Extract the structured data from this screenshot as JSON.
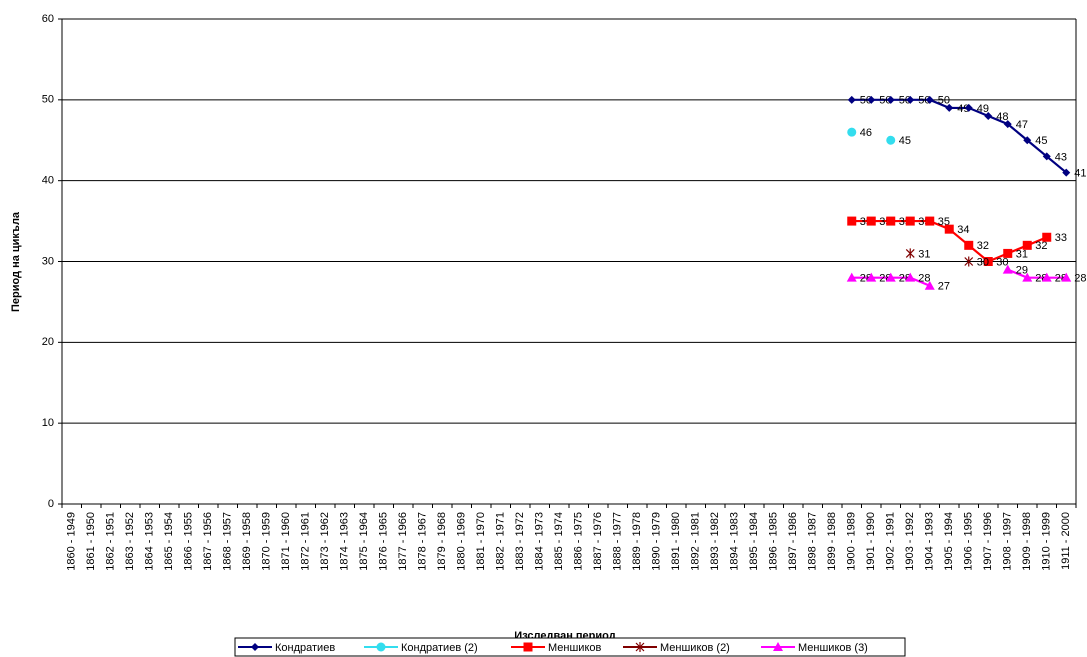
{
  "chart_data": {
    "type": "line",
    "xlabel": "Изследван период",
    "ylabel": "Период на цикъла",
    "categories": [
      "1860 - 1949",
      "1861 - 1950",
      "1862 - 1951",
      "1863 - 1952",
      "1864 - 1953",
      "1865 - 1954",
      "1866 - 1955",
      "1867 - 1956",
      "1868 - 1957",
      "1869 - 1958",
      "1870 - 1959",
      "1871 - 1960",
      "1872 - 1961",
      "1873 - 1962",
      "1874 - 1963",
      "1875 - 1964",
      "1876 - 1965",
      "1877 - 1966",
      "1878 - 1967",
      "1879 - 1968",
      "1880 - 1969",
      "1881 - 1970",
      "1882 - 1971",
      "1883 - 1972",
      "1884 - 1973",
      "1885 - 1974",
      "1886 - 1975",
      "1887 - 1976",
      "1888 - 1977",
      "1889 - 1978",
      "1890 - 1979",
      "1891 - 1980",
      "1892 - 1981",
      "1893 - 1982",
      "1894 - 1983",
      "1895 - 1984",
      "1896 - 1985",
      "1897 - 1986",
      "1898 - 1987",
      "1899 - 1988",
      "1900 - 1989",
      "1901 - 1990",
      "1902 - 1991",
      "1903 - 1992",
      "1904 - 1993",
      "1905 - 1994",
      "1906 - 1995",
      "1907 - 1996",
      "1908 - 1997",
      "1909 - 1998",
      "1910 - 1999",
      "1911 - 2000"
    ],
    "ylim": [
      0,
      60
    ],
    "yticks": [
      0,
      10,
      20,
      30,
      40,
      50,
      60
    ],
    "grid": true,
    "legend": "bottom",
    "series": [
      {
        "name": "Кондратиев",
        "color": "#000080",
        "marker": "diamond",
        "values": [
          null,
          null,
          null,
          null,
          null,
          null,
          null,
          null,
          null,
          null,
          null,
          null,
          null,
          null,
          null,
          null,
          null,
          null,
          null,
          null,
          null,
          null,
          null,
          null,
          null,
          null,
          null,
          null,
          null,
          null,
          null,
          null,
          null,
          null,
          null,
          null,
          null,
          null,
          null,
          null,
          50,
          50,
          50,
          50,
          50,
          49,
          49,
          48,
          47,
          45,
          43,
          41
        ]
      },
      {
        "name": "Кондратиев (2)",
        "color": "#33ddee",
        "marker": "circle",
        "values": [
          null,
          null,
          null,
          null,
          null,
          null,
          null,
          null,
          null,
          null,
          null,
          null,
          null,
          null,
          null,
          null,
          null,
          null,
          null,
          null,
          null,
          null,
          null,
          null,
          null,
          null,
          null,
          null,
          null,
          null,
          null,
          null,
          null,
          null,
          null,
          null,
          null,
          null,
          null,
          null,
          46,
          null,
          45,
          null,
          null,
          null,
          null,
          null,
          null,
          null,
          null,
          null
        ]
      },
      {
        "name": "Меншиков",
        "color": "#ff0000",
        "marker": "square",
        "values": [
          null,
          null,
          null,
          null,
          null,
          null,
          null,
          null,
          null,
          null,
          null,
          null,
          null,
          null,
          null,
          null,
          null,
          null,
          null,
          null,
          null,
          null,
          null,
          null,
          null,
          null,
          null,
          null,
          null,
          null,
          null,
          null,
          null,
          null,
          null,
          null,
          null,
          null,
          null,
          null,
          35,
          35,
          35,
          35,
          35,
          34,
          32,
          30,
          31,
          32,
          33,
          null
        ]
      },
      {
        "name": "Меншиков (2)",
        "color": "#800000",
        "marker": "asterisk",
        "values": [
          null,
          null,
          null,
          null,
          null,
          null,
          null,
          null,
          null,
          null,
          null,
          null,
          null,
          null,
          null,
          null,
          null,
          null,
          null,
          null,
          null,
          null,
          null,
          null,
          null,
          null,
          null,
          null,
          null,
          null,
          null,
          null,
          null,
          null,
          null,
          null,
          null,
          null,
          null,
          null,
          null,
          null,
          null,
          31,
          null,
          null,
          30,
          null,
          null,
          null,
          null,
          null
        ]
      },
      {
        "name": "Меншиков (3)",
        "color": "#ff00ff",
        "marker": "triangle",
        "values": [
          null,
          null,
          null,
          null,
          null,
          null,
          null,
          null,
          null,
          null,
          null,
          null,
          null,
          null,
          null,
          null,
          null,
          null,
          null,
          null,
          null,
          null,
          null,
          null,
          null,
          null,
          null,
          null,
          null,
          null,
          null,
          null,
          null,
          null,
          null,
          null,
          null,
          null,
          null,
          null,
          28,
          28,
          28,
          28,
          27,
          null,
          null,
          null,
          29,
          28,
          28,
          28
        ]
      }
    ]
  }
}
